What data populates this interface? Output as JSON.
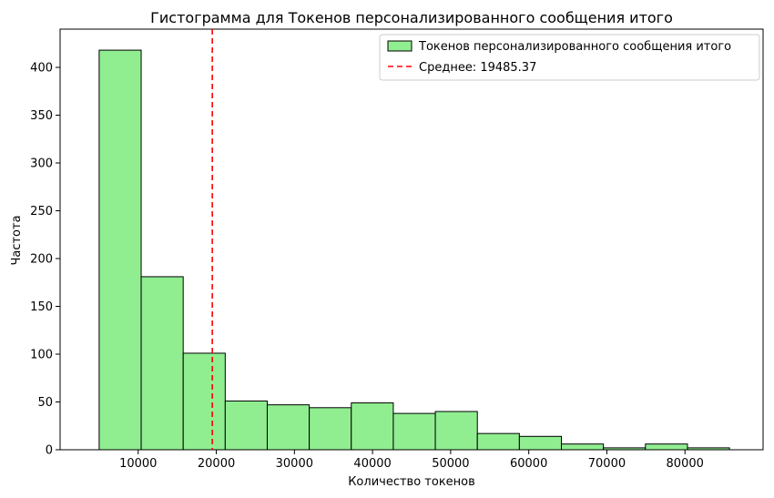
{
  "chart_data": {
    "type": "bar",
    "title": "Гистограмма для Токенов персонализированного сообщения итого",
    "xlabel": "Количество токенов",
    "ylabel": "Частота",
    "xlim": [
      0,
      90000
    ],
    "ylim": [
      0,
      440
    ],
    "x_ticks": [
      10000,
      20000,
      30000,
      40000,
      50000,
      60000,
      70000,
      80000
    ],
    "y_ticks": [
      0,
      50,
      100,
      150,
      200,
      250,
      300,
      350,
      400
    ],
    "grid": false,
    "legend_position": "top-right",
    "bins": {
      "edges": [
        5000,
        10380,
        15760,
        21140,
        26520,
        31900,
        37280,
        42660,
        48040,
        53420,
        58800,
        64180,
        69560,
        74940,
        80320,
        85700
      ],
      "counts": [
        418,
        181,
        101,
        51,
        47,
        44,
        49,
        38,
        40,
        17,
        14,
        6,
        2,
        6,
        2
      ]
    },
    "series": [
      {
        "name": "Токенов персонализированного сообщения итого",
        "color": "#90ee90",
        "edgecolor": "#000000"
      }
    ],
    "mean_line": {
      "label": "Среднее: 19485.37",
      "value": 19485.37,
      "color": "#ff0000"
    }
  }
}
